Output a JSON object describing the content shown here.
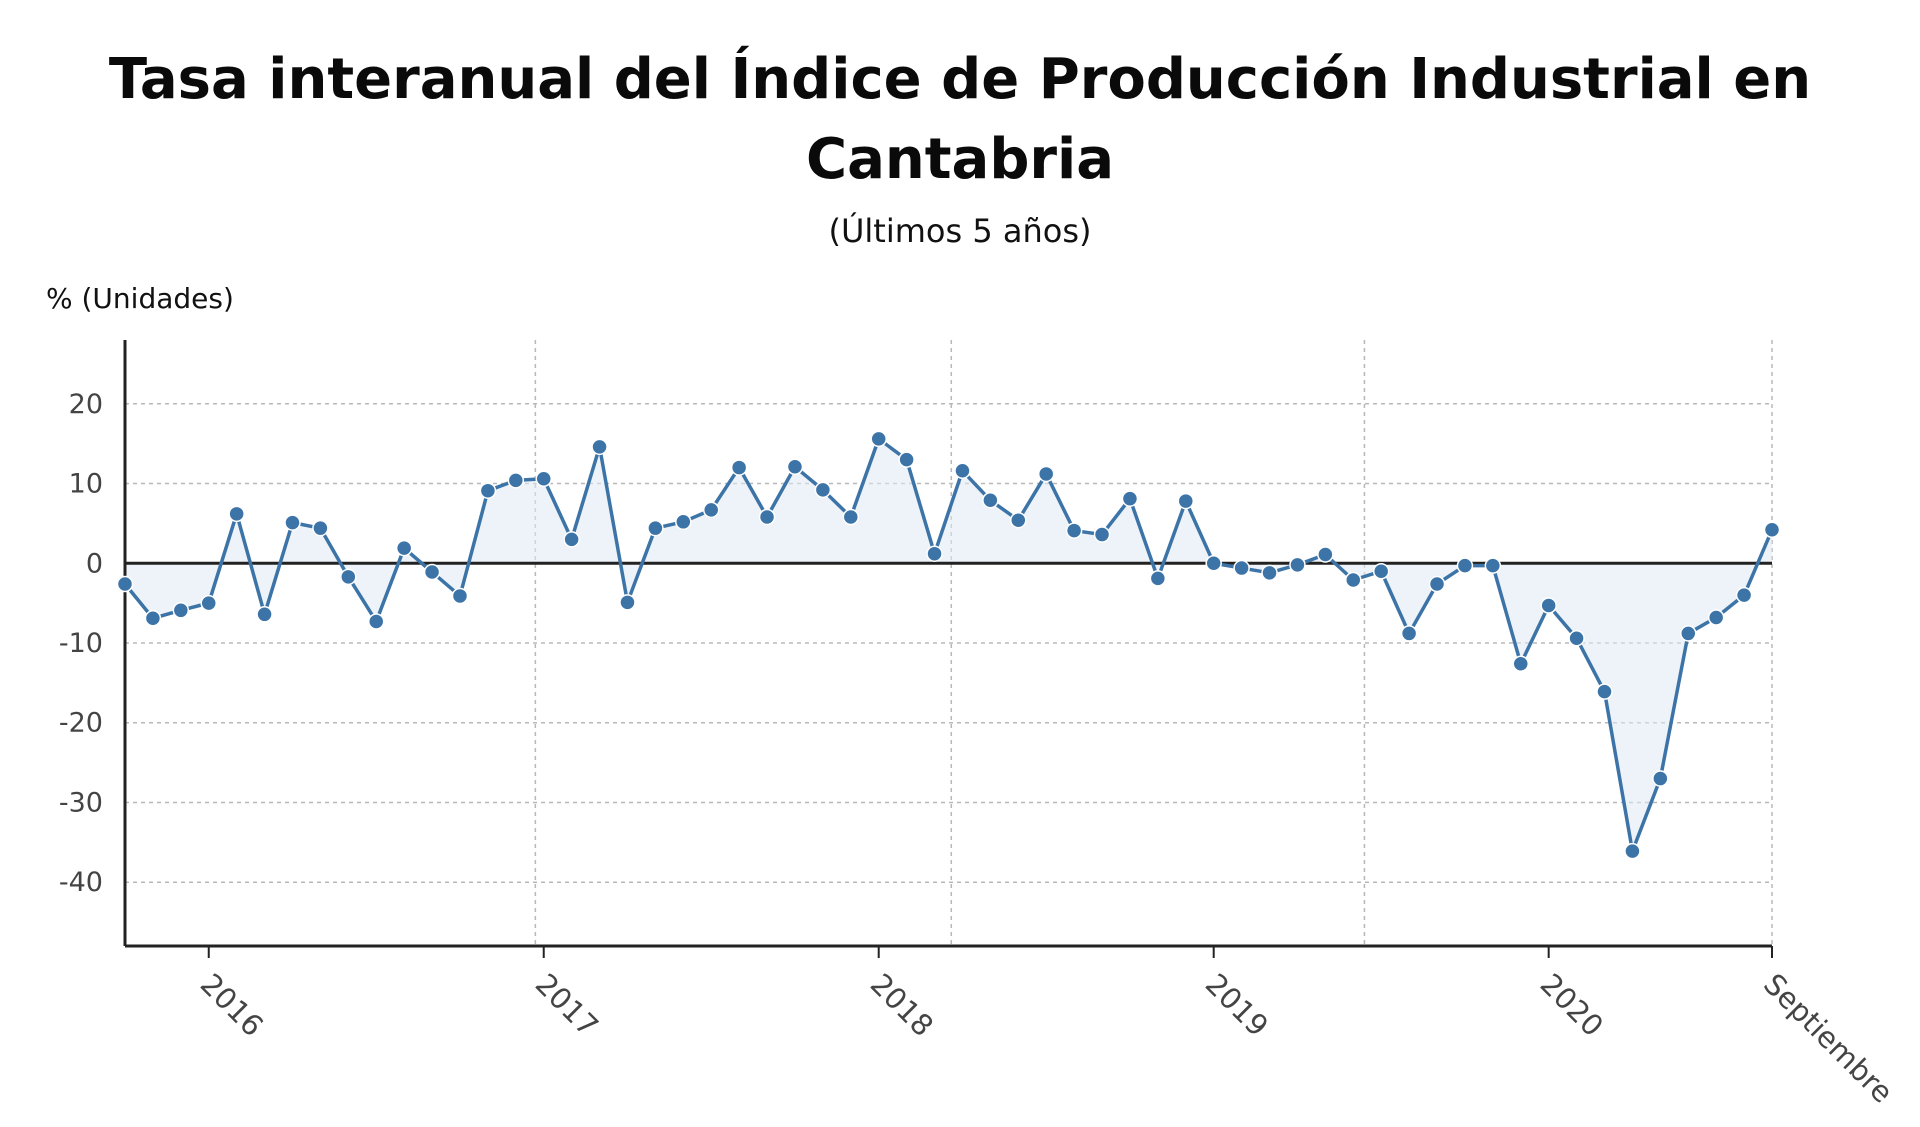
{
  "chart_data": {
    "type": "line",
    "title_line1": "Tasa interanual del Índice de Producción Industrial en",
    "title_line2": "Cantabria",
    "subtitle": "(Últimos 5 años)",
    "ylabel": "% (Unidades)",
    "xlabel": "",
    "ylim": [
      -48,
      28
    ],
    "yticks": [
      20,
      10,
      0,
      -10,
      -20,
      -30,
      -40
    ],
    "x_tick_labels": [
      {
        "label": "2016",
        "month_index": 3
      },
      {
        "label": "2017",
        "month_index": 15
      },
      {
        "label": "2018",
        "month_index": 27
      },
      {
        "label": "2019",
        "month_index": 39
      },
      {
        "label": "2020",
        "month_index": 51
      },
      {
        "label": "Septiembre",
        "month_index": 59
      }
    ],
    "x_gridlines_month_index": [
      14.7,
      29.6,
      44.4,
      59
    ],
    "grid": true,
    "area_fill": true,
    "series": [
      {
        "values": [
          -2.6,
          -6.9,
          -5.9,
          -5.0,
          6.2,
          -6.4,
          5.1,
          4.4,
          -1.7,
          -7.3,
          1.9,
          -1.1,
          -4.1,
          9.1,
          10.4,
          10.6,
          3.0,
          14.6,
          -4.9,
          4.4,
          5.2,
          6.7,
          12.0,
          5.8,
          12.1,
          9.2,
          5.8,
          15.6,
          13.0,
          1.2,
          11.6,
          7.9,
          5.4,
          11.2,
          4.1,
          3.6,
          8.1,
          -1.9,
          7.8,
          0.0,
          -0.6,
          -1.2,
          -0.2,
          1.1,
          -2.1,
          -1.0,
          -8.8,
          -2.6,
          -0.3,
          -0.3,
          -12.6,
          -5.3,
          -9.4,
          -16.1,
          -36.1,
          -27.0,
          -8.8,
          -6.8,
          -4.0,
          4.2
        ],
        "color": "#3d74a8",
        "fill_color": "#dfe9f3"
      }
    ]
  }
}
